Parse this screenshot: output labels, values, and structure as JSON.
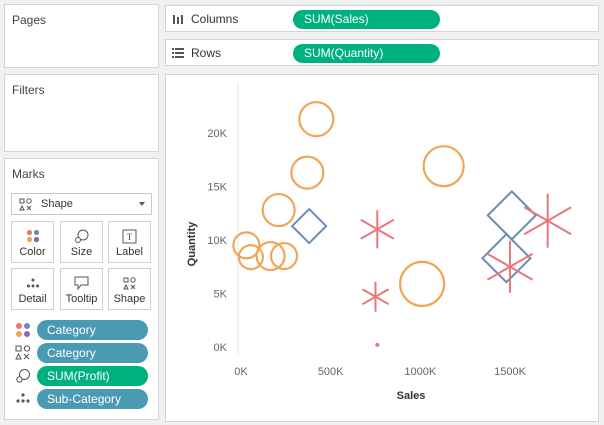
{
  "pages": {
    "title": "Pages"
  },
  "filters": {
    "title": "Filters"
  },
  "shelves": {
    "columns": {
      "label": "Columns",
      "pill": "SUM(Sales)"
    },
    "rows": {
      "label": "Rows",
      "pill": "SUM(Quantity)"
    }
  },
  "marks": {
    "title": "Marks",
    "mark_type": "Shape",
    "buttons": {
      "color": "Color",
      "size": "Size",
      "label": "Label",
      "detail": "Detail",
      "tooltip": "Tooltip",
      "shape": "Shape"
    },
    "fields": [
      {
        "label": "Category",
        "role": "color",
        "pill_color": "#4a9ab4"
      },
      {
        "label": "Category",
        "role": "shape",
        "pill_color": "#4a9ab4"
      },
      {
        "label": "SUM(Profit)",
        "role": "size",
        "pill_color": "#00b180"
      },
      {
        "label": "Sub-Category",
        "role": "detail",
        "pill_color": "#4a9ab4"
      }
    ]
  },
  "colors": {
    "furniture": "#6b8db5",
    "office_supplies": "#f0a657",
    "technology": "#e8777b",
    "green_pill": "#00b180",
    "blue_pill": "#4a9ab4"
  },
  "chart_data": {
    "type": "scatter",
    "xlabel": "Sales",
    "ylabel": "Quantity",
    "xlim": [
      0,
      1800000
    ],
    "ylim": [
      0,
      23000
    ],
    "xticks": [
      {
        "v": 0,
        "t": "0K"
      },
      {
        "v": 500000,
        "t": "500K"
      },
      {
        "v": 1000000,
        "t": "1000K"
      },
      {
        "v": 1500000,
        "t": "1500K"
      }
    ],
    "yticks": [
      {
        "v": 0,
        "t": "0K"
      },
      {
        "v": 5000,
        "t": "5K"
      },
      {
        "v": 10000,
        "t": "10K"
      },
      {
        "v": 15000,
        "t": "15K"
      },
      {
        "v": 20000,
        "t": "20K"
      }
    ],
    "series": [
      {
        "shape": "circle",
        "color": "#f0a657",
        "points": [
          {
            "x": 30000,
            "y": 9500,
            "s": 13
          },
          {
            "x": 55000,
            "y": 8400,
            "s": 12
          },
          {
            "x": 165000,
            "y": 8500,
            "s": 14
          },
          {
            "x": 240000,
            "y": 8500,
            "s": 13
          },
          {
            "x": 210000,
            "y": 12800,
            "s": 16
          },
          {
            "x": 370000,
            "y": 16300,
            "s": 16
          },
          {
            "x": 420000,
            "y": 21300,
            "s": 17
          },
          {
            "x": 1130000,
            "y": 16900,
            "s": 20
          },
          {
            "x": 1010000,
            "y": 5900,
            "s": 22
          }
        ]
      },
      {
        "shape": "diamond",
        "color": "#6b8db5",
        "points": [
          {
            "x": 380000,
            "y": 11300,
            "s": 17
          },
          {
            "x": 1510000,
            "y": 12300,
            "s": 24
          },
          {
            "x": 1480000,
            "y": 8300,
            "s": 24
          }
        ]
      },
      {
        "shape": "asterisk",
        "color": "#e8777b",
        "points": [
          {
            "x": 760000,
            "y": 200,
            "s": 2
          },
          {
            "x": 750000,
            "y": 4700,
            "s": 15
          },
          {
            "x": 760000,
            "y": 11000,
            "s": 19
          },
          {
            "x": 1500000,
            "y": 7500,
            "s": 26
          },
          {
            "x": 1710000,
            "y": 11800,
            "s": 27
          }
        ]
      }
    ]
  }
}
